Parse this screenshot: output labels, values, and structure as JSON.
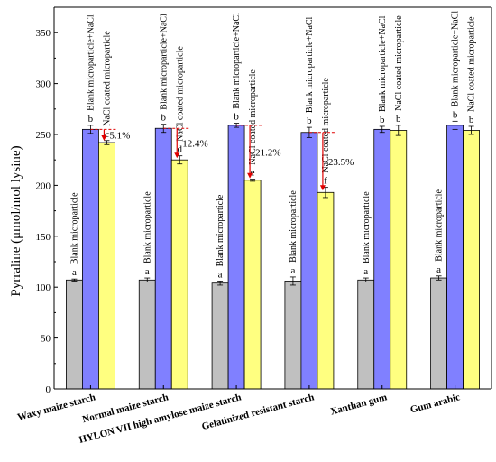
{
  "chart_data": {
    "type": "bar",
    "title": "",
    "xlabel": "",
    "ylabel": "Pyrraline (μmol/mol lysine)",
    "ylim": [
      0,
      375
    ],
    "yticks": [
      0,
      50,
      100,
      150,
      200,
      250,
      300,
      350
    ],
    "categories": [
      "Waxy maize starch",
      "Normal maize starch",
      "HYLON VII high amylose maize starch",
      "Gelatinized resistant starch",
      "Xanthan gum",
      "Gum arabic"
    ],
    "series": [
      {
        "name": "Blank microparticle",
        "color": "#c0c0c0",
        "values": [
          107,
          107,
          104,
          106,
          107,
          109
        ],
        "errors": [
          1,
          2,
          2,
          4,
          2,
          2
        ],
        "letters": [
          "a",
          "a",
          "a",
          "a",
          "a",
          "a"
        ]
      },
      {
        "name": "Blank microparticle+NaCl",
        "color": "#8080ff",
        "values": [
          255,
          256,
          259,
          252,
          255,
          259
        ],
        "errors": [
          4,
          4,
          2,
          5,
          3,
          4
        ],
        "letters": [
          "b",
          "b",
          "b",
          "b",
          "b",
          "b"
        ]
      },
      {
        "name": "NaCl coated microparticle",
        "color": "#ffff80",
        "values": [
          242,
          225,
          205,
          193,
          254,
          254
        ],
        "errors": [
          2,
          4,
          1,
          5,
          5,
          4
        ],
        "letters": [
          "c",
          "d",
          "e",
          "f",
          "b",
          "b"
        ]
      }
    ],
    "reductions": [
      {
        "category_index": 0,
        "label": "5.1%"
      },
      {
        "category_index": 1,
        "label": "12.4%"
      },
      {
        "category_index": 2,
        "label": "21.2%"
      },
      {
        "category_index": 3,
        "label": "23.5%"
      }
    ],
    "arrow_color": "#e00000"
  }
}
